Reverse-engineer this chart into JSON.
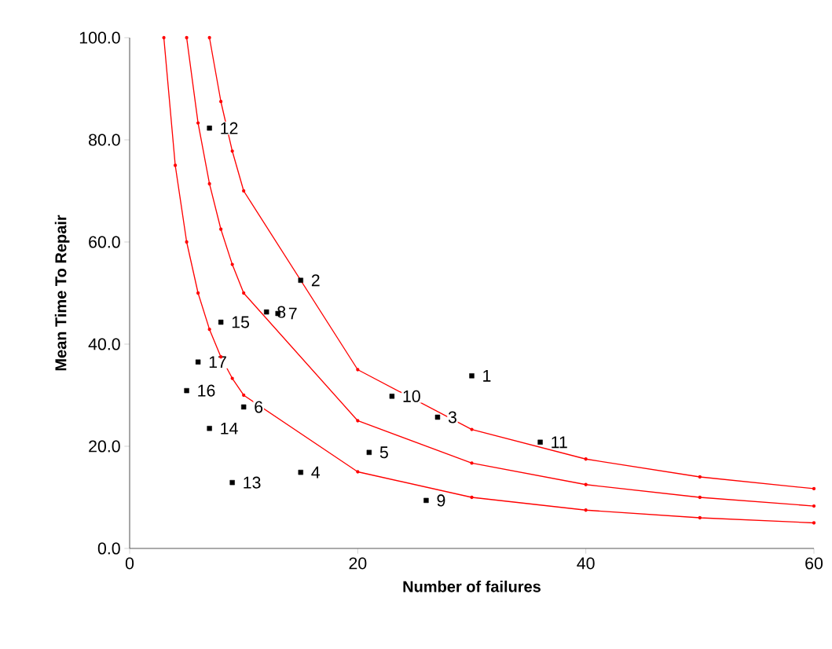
{
  "chart_data": {
    "type": "line",
    "xlabel": "Number of failures",
    "ylabel": "Mean Time To Repair",
    "xlim": [
      0,
      60
    ],
    "ylim": [
      0,
      100
    ],
    "xticks": [
      0,
      20,
      40,
      60
    ],
    "yticks": [
      {
        "value": 0,
        "label": "0.0"
      },
      {
        "value": 20,
        "label": "20.0"
      },
      {
        "value": 40,
        "label": "40.0"
      },
      {
        "value": 60,
        "label": "60.0"
      },
      {
        "value": 80,
        "label": "80.0"
      },
      {
        "value": 100,
        "label": "100.0"
      }
    ],
    "series": [
      {
        "color": "#ff0000",
        "marker": "circle",
        "x": [
          3,
          4,
          5,
          6,
          7,
          8,
          9,
          10,
          20,
          30,
          40,
          50,
          60
        ],
        "values": [
          100,
          75,
          60,
          50,
          42.9,
          37.5,
          33.3,
          30,
          15,
          10,
          7.5,
          6,
          5
        ]
      },
      {
        "color": "#ff0000",
        "marker": "circle",
        "x": [
          5,
          6,
          7,
          8,
          9,
          10,
          20,
          30,
          40,
          50,
          60
        ],
        "values": [
          100,
          83.3,
          71.4,
          62.5,
          55.6,
          50,
          25,
          16.7,
          12.5,
          10,
          8.3
        ]
      },
      {
        "color": "#ff0000",
        "marker": "circle",
        "x": [
          7,
          8,
          9,
          10,
          20,
          30,
          40,
          50,
          60
        ],
        "values": [
          100,
          87.5,
          77.8,
          70,
          35,
          23.3,
          17.5,
          14,
          11.7
        ]
      },
      {
        "type": "scatter",
        "color": "#000000",
        "marker": "square",
        "x": [
          30,
          15,
          27,
          15,
          21,
          10,
          13,
          12,
          26,
          23,
          36,
          7,
          9,
          7,
          8,
          5,
          6
        ],
        "values": [
          33.8,
          52.5,
          25.7,
          14.9,
          18.8,
          27.7,
          46.0,
          46.3,
          9.4,
          29.8,
          20.8,
          82.3,
          12.9,
          23.5,
          44.3,
          30.9,
          36.5
        ]
      }
    ],
    "annotations": [
      {
        "text": "1",
        "x": 30,
        "y": 33.8
      },
      {
        "text": "2",
        "x": 15,
        "y": 52.5
      },
      {
        "text": "3",
        "x": 27,
        "y": 25.7
      },
      {
        "text": "4",
        "x": 15,
        "y": 14.9
      },
      {
        "text": "5",
        "x": 21,
        "y": 18.8
      },
      {
        "text": "6",
        "x": 10,
        "y": 27.7
      },
      {
        "text": "7",
        "x": 13,
        "y": 46.0
      },
      {
        "text": "8",
        "x": 12,
        "y": 46.3
      },
      {
        "text": "9",
        "x": 26,
        "y": 9.4
      },
      {
        "text": "10",
        "x": 23,
        "y": 29.8
      },
      {
        "text": "11",
        "x": 36,
        "y": 20.8
      },
      {
        "text": "12",
        "x": 7,
        "y": 82.3
      },
      {
        "text": "13",
        "x": 9,
        "y": 12.9
      },
      {
        "text": "14",
        "x": 7,
        "y": 23.5
      },
      {
        "text": "15",
        "x": 8,
        "y": 44.3
      },
      {
        "text": "16",
        "x": 5,
        "y": 30.9
      },
      {
        "text": "17",
        "x": 6,
        "y": 36.5
      }
    ]
  }
}
